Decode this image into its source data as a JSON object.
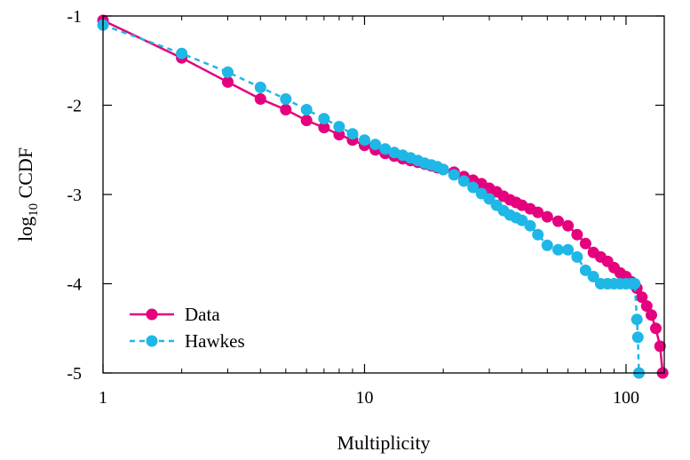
{
  "chart_data": {
    "type": "line",
    "xlabel": "Multiplicity",
    "ylabel_base": "log",
    "ylabel_sub": "10",
    "ylabel_rest": " CCDF",
    "xscale": "log",
    "xlim": [
      1,
      140
    ],
    "ylim": [
      -5,
      -1
    ],
    "x_ticks": [
      {
        "value": 1,
        "label": "1"
      },
      {
        "value": 10,
        "label": "10"
      },
      {
        "value": 100,
        "label": "100"
      }
    ],
    "y_ticks": [
      {
        "value": -1,
        "label": "-1"
      },
      {
        "value": -2,
        "label": "-2"
      },
      {
        "value": -3,
        "label": "-3"
      },
      {
        "value": -4,
        "label": "-4"
      },
      {
        "value": -5,
        "label": "-5"
      }
    ],
    "grid": false,
    "legend_position": "bottom-left",
    "series": [
      {
        "name": "Data",
        "color": "#e5007e",
        "line_style": "solid",
        "marker": "circle",
        "points": [
          [
            1,
            -1.05
          ],
          [
            2,
            -1.47
          ],
          [
            3,
            -1.74
          ],
          [
            4,
            -1.93
          ],
          [
            5,
            -2.05
          ],
          [
            6,
            -2.17
          ],
          [
            7,
            -2.25
          ],
          [
            8,
            -2.33
          ],
          [
            9,
            -2.39
          ],
          [
            10,
            -2.45
          ],
          [
            11,
            -2.5
          ],
          [
            12,
            -2.54
          ],
          [
            13,
            -2.57
          ],
          [
            14,
            -2.6
          ],
          [
            15,
            -2.62
          ],
          [
            16,
            -2.64
          ],
          [
            17,
            -2.66
          ],
          [
            18,
            -2.68
          ],
          [
            19,
            -2.7
          ],
          [
            20,
            -2.72
          ],
          [
            22,
            -2.75
          ],
          [
            24,
            -2.8
          ],
          [
            26,
            -2.84
          ],
          [
            28,
            -2.88
          ],
          [
            30,
            -2.93
          ],
          [
            32,
            -2.97
          ],
          [
            34,
            -3.02
          ],
          [
            36,
            -3.06
          ],
          [
            38,
            -3.09
          ],
          [
            40,
            -3.12
          ],
          [
            43,
            -3.16
          ],
          [
            46,
            -3.2
          ],
          [
            50,
            -3.25
          ],
          [
            55,
            -3.3
          ],
          [
            60,
            -3.35
          ],
          [
            65,
            -3.45
          ],
          [
            70,
            -3.55
          ],
          [
            75,
            -3.65
          ],
          [
            80,
            -3.7
          ],
          [
            85,
            -3.75
          ],
          [
            90,
            -3.82
          ],
          [
            95,
            -3.88
          ],
          [
            100,
            -3.92
          ],
          [
            105,
            -3.98
          ],
          [
            110,
            -4.05
          ],
          [
            115,
            -4.15
          ],
          [
            120,
            -4.25
          ],
          [
            125,
            -4.35
          ],
          [
            130,
            -4.5
          ],
          [
            135,
            -4.7
          ],
          [
            138,
            -5.0
          ]
        ]
      },
      {
        "name": "Hawkes",
        "color": "#1fb7e6",
        "line_style": "dashed",
        "marker": "circle",
        "points": [
          [
            1,
            -1.1
          ],
          [
            2,
            -1.42
          ],
          [
            3,
            -1.63
          ],
          [
            4,
            -1.8
          ],
          [
            5,
            -1.93
          ],
          [
            6,
            -2.05
          ],
          [
            7,
            -2.15
          ],
          [
            8,
            -2.24
          ],
          [
            9,
            -2.32
          ],
          [
            10,
            -2.39
          ],
          [
            11,
            -2.44
          ],
          [
            12,
            -2.49
          ],
          [
            13,
            -2.53
          ],
          [
            14,
            -2.56
          ],
          [
            15,
            -2.59
          ],
          [
            16,
            -2.62
          ],
          [
            17,
            -2.65
          ],
          [
            18,
            -2.67
          ],
          [
            19,
            -2.69
          ],
          [
            20,
            -2.72
          ],
          [
            22,
            -2.78
          ],
          [
            24,
            -2.85
          ],
          [
            26,
            -2.92
          ],
          [
            28,
            -2.99
          ],
          [
            30,
            -3.05
          ],
          [
            32,
            -3.12
          ],
          [
            34,
            -3.18
          ],
          [
            36,
            -3.23
          ],
          [
            38,
            -3.26
          ],
          [
            40,
            -3.29
          ],
          [
            43,
            -3.35
          ],
          [
            46,
            -3.45
          ],
          [
            50,
            -3.57
          ],
          [
            55,
            -3.62
          ],
          [
            60,
            -3.62
          ],
          [
            65,
            -3.7
          ],
          [
            70,
            -3.85
          ],
          [
            75,
            -3.92
          ],
          [
            80,
            -4.0
          ],
          [
            85,
            -4.0
          ],
          [
            90,
            -4.0
          ],
          [
            95,
            -4.0
          ],
          [
            100,
            -4.0
          ],
          [
            105,
            -4.0
          ],
          [
            108,
            -4.0
          ],
          [
            110,
            -4.4
          ],
          [
            111,
            -4.6
          ],
          [
            112,
            -5.0
          ]
        ]
      }
    ]
  }
}
